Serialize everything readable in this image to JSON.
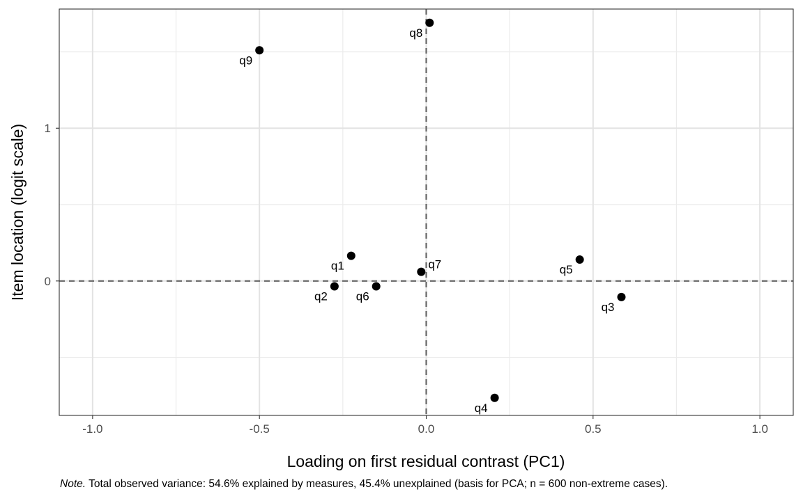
{
  "chart_data": {
    "type": "scatter",
    "xlabel": "Loading on first residual contrast (PC1)",
    "ylabel": "Item location (logit scale)",
    "xlim": [
      -1.1,
      1.1
    ],
    "ylim": [
      -0.88,
      1.78
    ],
    "x_ticks": [
      -1.0,
      -0.5,
      0.0,
      0.5,
      1.0
    ],
    "x_tick_labels": [
      "-1.0",
      "-0.5",
      "0.0",
      "0.5",
      "1.0"
    ],
    "y_ticks": [
      0,
      1
    ],
    "y_tick_labels": [
      "0",
      "1"
    ],
    "x_minor_ticks": [
      -0.75,
      -0.25,
      0.25,
      0.75
    ],
    "y_minor_ticks": [
      -0.5,
      0.5,
      1.5
    ],
    "grid": true,
    "reference_lines": {
      "vertical_x": 0,
      "horizontal_y": 0,
      "style": "dashed",
      "color": "#666666"
    },
    "points": [
      {
        "label": "q1",
        "x": -0.225,
        "y": 0.165
      },
      {
        "label": "q2",
        "x": -0.275,
        "y": -0.035
      },
      {
        "label": "q3",
        "x": 0.585,
        "y": -0.105
      },
      {
        "label": "q4",
        "x": 0.205,
        "y": -0.765
      },
      {
        "label": "q5",
        "x": 0.46,
        "y": 0.14
      },
      {
        "label": "q6",
        "x": -0.15,
        "y": -0.035
      },
      {
        "label": "q7",
        "x": -0.015,
        "y": 0.06
      },
      {
        "label": "q8",
        "x": 0.01,
        "y": 1.69
      },
      {
        "label": "q9",
        "x": -0.5,
        "y": 1.51
      }
    ],
    "point_color": "#000000"
  },
  "caption": {
    "note_label": "Note.",
    "text": " Total observed variance: 54.6% explained by measures, 45.4% unexplained (basis for PCA; n = 600 non-extreme cases)."
  }
}
